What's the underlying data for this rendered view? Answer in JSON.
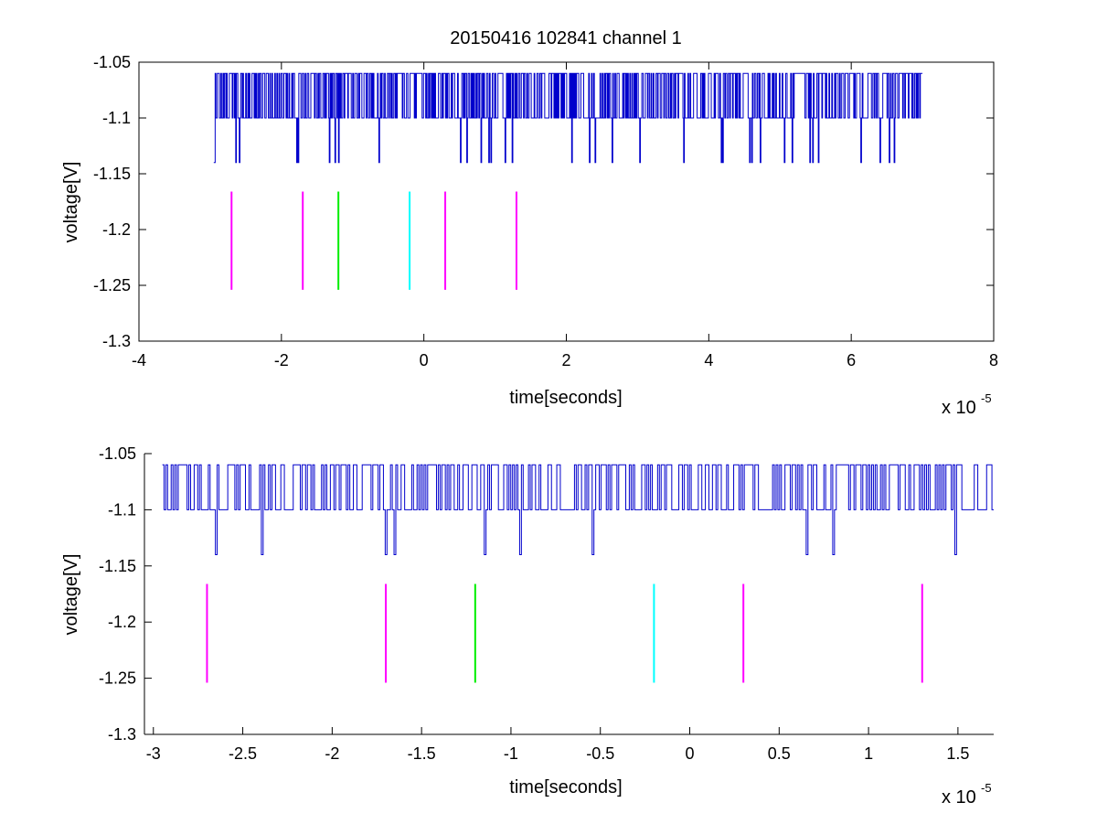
{
  "chart_data": [
    {
      "type": "line",
      "title": "20150416 102841 channel 1",
      "xlabel": "time[seconds]",
      "ylabel": "voltage[V]",
      "x_multiplier": "x 10",
      "x_multiplier_exp": "-5",
      "xlim": [
        -4,
        8
      ],
      "ylim": [
        -1.3,
        -1.05
      ],
      "xticks": [
        -4,
        -2,
        0,
        2,
        4,
        6,
        8
      ],
      "xtick_labels": [
        "-4",
        "-2",
        "0",
        "2",
        "4",
        "6",
        "8"
      ],
      "yticks": [
        -1.3,
        -1.25,
        -1.2,
        -1.15,
        -1.1,
        -1.05
      ],
      "ytick_labels": [
        "-1.3",
        "-1.25",
        "-1.2",
        "-1.15",
        "-1.1",
        "-1.05"
      ],
      "grid": false,
      "trace": {
        "color": "#0000cc",
        "x_start": -2.95,
        "x_end": 7.0,
        "levels": [
          -1.06,
          -1.1,
          -1.14
        ],
        "baseline": -1.1
      },
      "markers": [
        {
          "x": -2.7,
          "color": "#ff00ff",
          "y_from": -1.254,
          "y_to": -1.166
        },
        {
          "x": -1.7,
          "color": "#ff00ff",
          "y_from": -1.254,
          "y_to": -1.166
        },
        {
          "x": -1.2,
          "color": "#00ee00",
          "y_from": -1.254,
          "y_to": -1.166
        },
        {
          "x": -0.2,
          "color": "#00ffff",
          "y_from": -1.254,
          "y_to": -1.166
        },
        {
          "x": 0.3,
          "color": "#ff00ff",
          "y_from": -1.254,
          "y_to": -1.166
        },
        {
          "x": 1.3,
          "color": "#ff00ff",
          "y_from": -1.254,
          "y_to": -1.166
        }
      ]
    },
    {
      "type": "line",
      "title": "",
      "xlabel": "time[seconds]",
      "ylabel": "voltage[V]",
      "x_multiplier": "x 10",
      "x_multiplier_exp": "-5",
      "xlim": [
        -3.05,
        1.7
      ],
      "ylim": [
        -1.3,
        -1.05
      ],
      "xticks": [
        -3,
        -2.5,
        -2,
        -1.5,
        -1,
        -0.5,
        0,
        0.5,
        1,
        1.5
      ],
      "xtick_labels": [
        "-3",
        "-2.5",
        "-2",
        "-1.5",
        "-1",
        "-0.5",
        "0",
        "0.5",
        "1",
        "1.5"
      ],
      "yticks": [
        -1.3,
        -1.25,
        -1.2,
        -1.15,
        -1.1,
        -1.05
      ],
      "ytick_labels": [
        "-1.3",
        "-1.25",
        "-1.2",
        "-1.15",
        "-1.1",
        "-1.05"
      ],
      "grid": false,
      "trace": {
        "color": "#0000cc",
        "x_start": -2.95,
        "x_end": 1.7,
        "levels": [
          -1.06,
          -1.1,
          -1.14
        ],
        "baseline": -1.1,
        "dips": [
          -2.65,
          -2.4,
          -1.7,
          -1.65,
          -1.15,
          -0.95,
          -0.55,
          0.65,
          0.8,
          1.48
        ]
      },
      "markers": [
        {
          "x": -2.7,
          "color": "#ff00ff",
          "y_from": -1.254,
          "y_to": -1.166
        },
        {
          "x": -1.7,
          "color": "#ff00ff",
          "y_from": -1.254,
          "y_to": -1.166
        },
        {
          "x": -1.2,
          "color": "#00ee00",
          "y_from": -1.254,
          "y_to": -1.166
        },
        {
          "x": -0.2,
          "color": "#00ffff",
          "y_from": -1.254,
          "y_to": -1.166
        },
        {
          "x": 0.3,
          "color": "#ff00ff",
          "y_from": -1.254,
          "y_to": -1.166
        },
        {
          "x": 1.3,
          "color": "#ff00ff",
          "y_from": -1.254,
          "y_to": -1.166
        }
      ]
    }
  ]
}
